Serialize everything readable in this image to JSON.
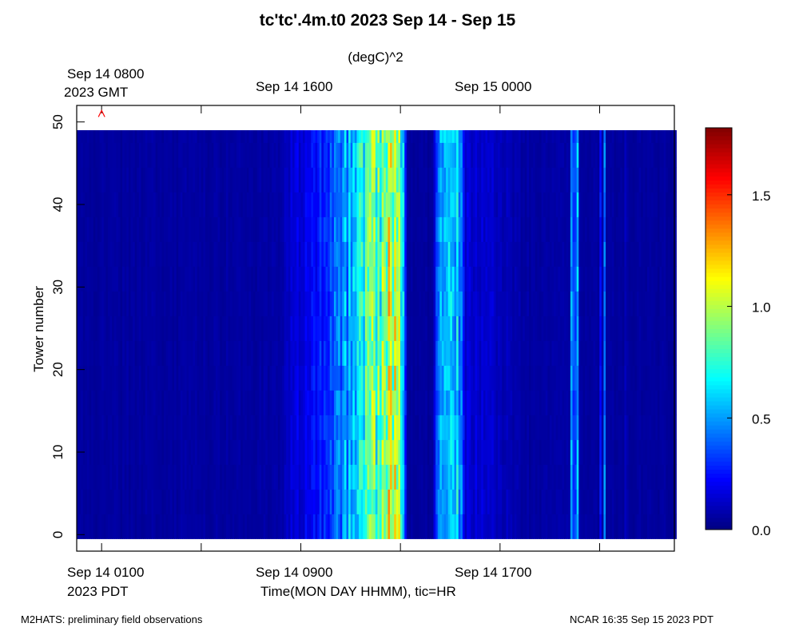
{
  "chart_data": {
    "type": "heatmap",
    "title": "tc'tc'.4m.t0 2023 Sep 14 - Sep 15",
    "units": "(degC)^2",
    "ylabel": "Tower number",
    "xlabel": "Time(MON DAY HHMM), tic=HR",
    "ylim": [
      -2,
      52
    ],
    "yticks": [
      0,
      10,
      20,
      30,
      40,
      50
    ],
    "x_range_hours_pdt": [
      0,
      24
    ],
    "x_ticks_hours": [
      0,
      4,
      8,
      12,
      16,
      20
    ],
    "x_labels_bottom": [
      {
        "hour": 1,
        "line1": "Sep 14 0100",
        "line2": "2023 PDT"
      },
      {
        "hour": 9,
        "line1": "Sep 14 0900",
        "line2": ""
      },
      {
        "hour": 17,
        "line1": "Sep 14 1700",
        "line2": ""
      }
    ],
    "x_labels_top": [
      {
        "hour": 1,
        "line1": "Sep 14 0800",
        "line2": "2023 GMT"
      },
      {
        "hour": 9,
        "line1": "Sep 14 1600",
        "line2": ""
      },
      {
        "hour": 17,
        "line1": "Sep 15 0000",
        "line2": ""
      }
    ],
    "towers": [
      0,
      49
    ],
    "time_step_hours": 0.0833,
    "colorbar": {
      "min": 0.0,
      "max": 1.8,
      "ticks": [
        0.0,
        0.5,
        1.0,
        1.5
      ],
      "tick_labels": [
        "0.0",
        "0.5",
        "1.0",
        "1.5"
      ],
      "colormap": "jet"
    },
    "marker": {
      "hour": 1,
      "tower": 51,
      "symbol": "^",
      "color": "#ff0000"
    },
    "time_profile": [
      {
        "hour": 0,
        "value": 0.05
      },
      {
        "hour": 8,
        "value": 0.06
      },
      {
        "hour": 8.5,
        "value": 0.12
      },
      {
        "hour": 9.5,
        "value": 0.22
      },
      {
        "hour": 10.5,
        "value": 0.4
      },
      {
        "hour": 11.5,
        "value": 0.65
      },
      {
        "hour": 12.2,
        "value": 0.85
      },
      {
        "hour": 12.9,
        "value": 1.05
      },
      {
        "hour": 13.1,
        "value": 0.55
      },
      {
        "hour": 13.3,
        "value": 0.05
      },
      {
        "hour": 14.3,
        "value": 0.05
      },
      {
        "hour": 14.6,
        "value": 0.5
      },
      {
        "hour": 15.3,
        "value": 0.62
      },
      {
        "hour": 15.6,
        "value": 0.15
      },
      {
        "hour": 16.8,
        "value": 0.12
      },
      {
        "hour": 18,
        "value": 0.06
      },
      {
        "hour": 24,
        "value": 0.05
      }
    ],
    "spikes": [
      {
        "hour": 19.85,
        "value": 0.55
      },
      {
        "hour": 20.0,
        "value": 0.35
      },
      {
        "hour": 20.15,
        "value": 0.5
      },
      {
        "hour": 21.2,
        "value": 0.5
      },
      {
        "hour": 21.0,
        "value": 0.25
      },
      {
        "hour": 22.0,
        "value": 0.12
      }
    ]
  },
  "footer": {
    "left": "M2HATS: preliminary field observations",
    "right": "NCAR 16:35 Sep 15 2023 PDT"
  },
  "colors": {
    "marker": "#ff0000",
    "frame": "#000000"
  }
}
